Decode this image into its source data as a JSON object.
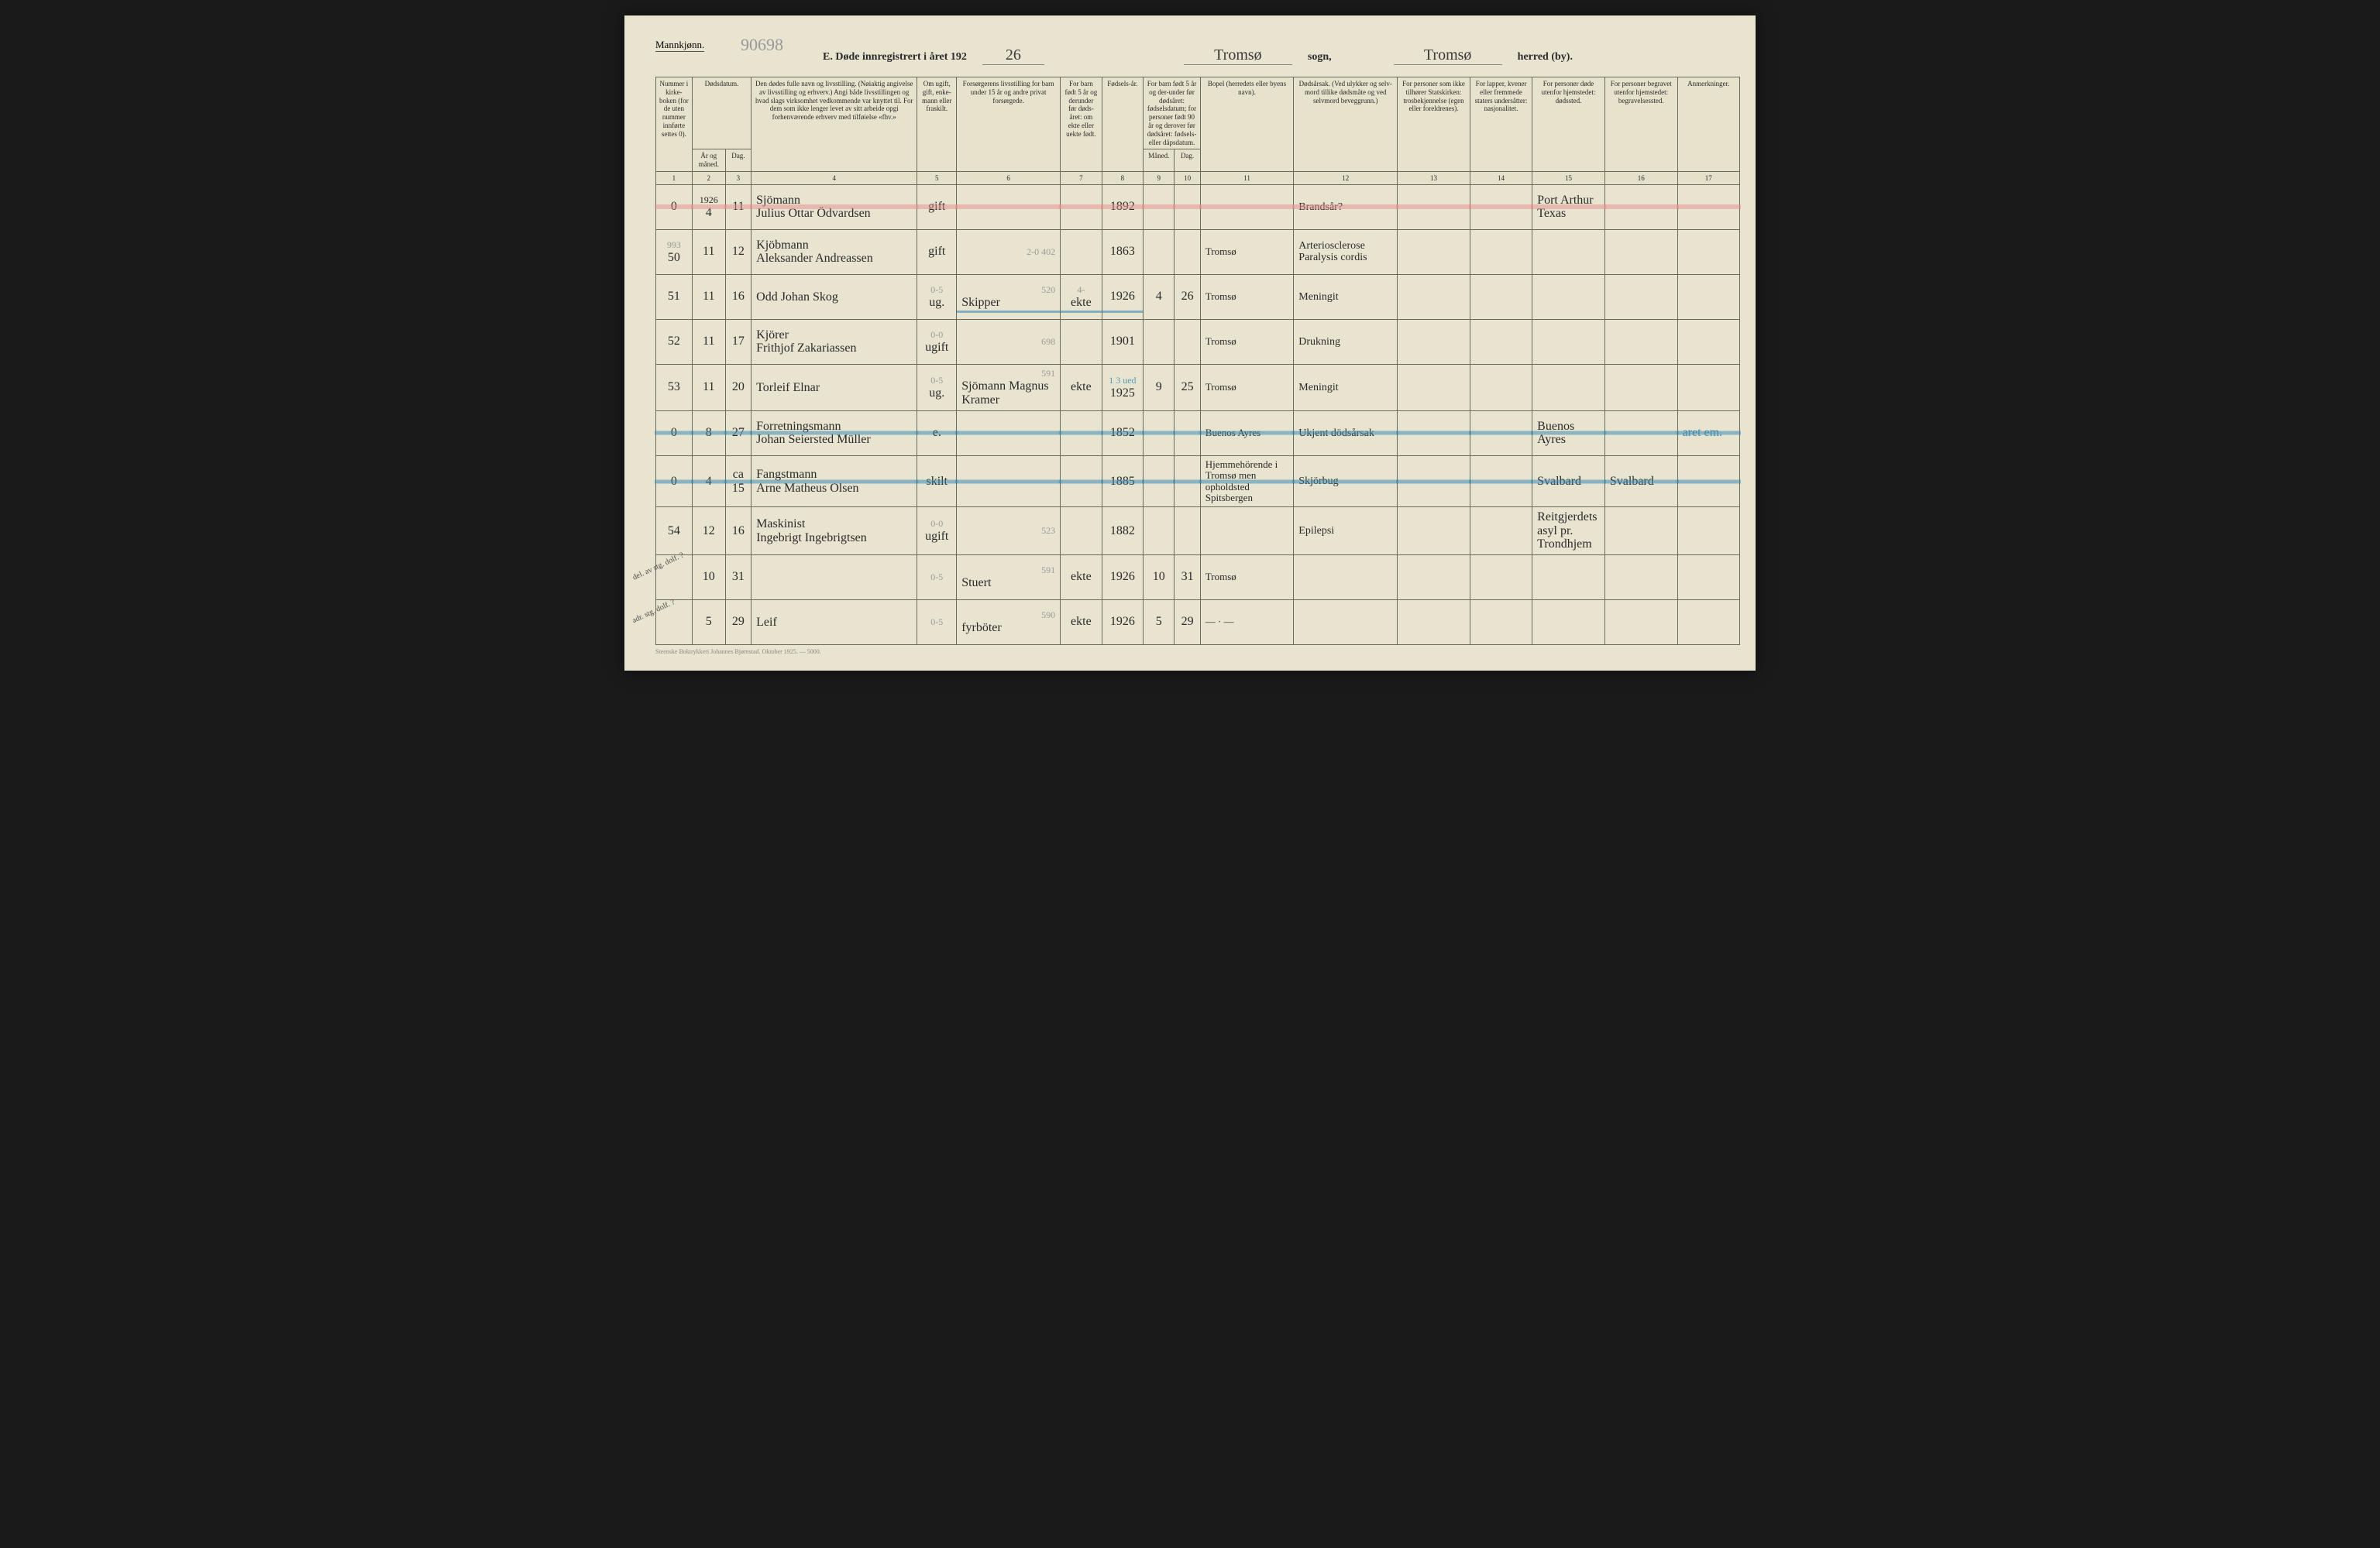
{
  "colors": {
    "paper": "#e8e4d0",
    "ink": "#2a2a2a",
    "pencil": "#9a9a9a",
    "rule": "#6a6a5a",
    "pink_highlight": "rgba(230,140,140,0.5)",
    "blue_highlight": "rgba(60,140,180,0.55)"
  },
  "header": {
    "gender": "Mannkjønn.",
    "pencil_top": "90698",
    "title_prefix": "E.  Døde innregistrert i året 192",
    "year_suffix": "26",
    "sogn_label": "sogn,",
    "sogn_value": "Tromsø",
    "herred_label": "herred (by).",
    "herred_value": "Tromsø"
  },
  "columns": {
    "c1": "Nummer i kirke-boken (for de uten nummer innførte settes 0).",
    "c2_3": "Dødsdatum.",
    "c2": "År og måned.",
    "c3": "Dag.",
    "c4": "Den dødes fulle navn og livsstilling. (Nøiaktig angivelse av livsstilling og erhverv.) Angi både livsstillingen og hvad slags virksomhet vedkommende var knyttet til. For dem som ikke lenger levet av sitt arbeide opgi forhenværende erhverv med tilføielse «fhv.»",
    "c5": "Om ugift, gift, enke-mann eller fraskilt.",
    "c6": "Forsørgerens livsstilling for barn under 15 år og andre privat forsørgede.",
    "c7": "For barn født 5 år og derunder før døds-året: om ekte eller uekte født.",
    "c8": "Fødsels-år.",
    "c9_10": "For barn født 5 år og der-under før dødsåret: fødselsdatum; for personer født 90 år og derover før dødsåret: fødsels- eller dåpsdatum.",
    "c9": "Måned.",
    "c10": "Dag.",
    "c11": "Bopel (herredets eller byens navn).",
    "c12": "Dødsårsak. (Ved ulykker og selv-mord tillike dødsmåte og ved selvmord beveggrunn.)",
    "c13": "For personer som ikke tilhører Statskirken: trosbekjennelse (egen eller foreldrenes).",
    "c14": "For lapper, kvener eller fremmede staters undersåtter: nasjonalitet.",
    "c15": "For personer døde utenfor hjemstedet: dødssted.",
    "c16": "For personer begravet utenfor hjemstedet: begravelsessted.",
    "c17": "Anmerkninger."
  },
  "colnums": [
    "1",
    "2",
    "3",
    "4",
    "5",
    "6",
    "7",
    "8",
    "9",
    "10",
    "11",
    "12",
    "13",
    "14",
    "15",
    "16",
    "17"
  ],
  "rows": [
    {
      "num": "0",
      "year_note": "1926",
      "month": "4",
      "day": "11",
      "name_top": "Sjömann",
      "name_bot": "Julius Ottar Ödvardsen",
      "status": "gift",
      "provider": "",
      "ekte": "",
      "birth": "1892",
      "bm": "",
      "bd": "",
      "residence": "",
      "cause": "Brandsår?",
      "faith": "",
      "nat": "",
      "deathplace_top": "Port Arthur",
      "deathplace_bot": "Texas",
      "burial": "",
      "remarks": "",
      "highlight": "pink"
    },
    {
      "num": "50",
      "pencil_num": "993",
      "month": "11",
      "day": "12",
      "name_top": "Kjöbmann",
      "name_bot": "Aleksander Andreassen",
      "status": "gift",
      "provider": "",
      "pencil_provider": "2-0   402",
      "ekte": "",
      "birth": "1863",
      "bm": "",
      "bd": "",
      "residence": "Tromsø",
      "cause": "Arteriosclerose Paralysis cordis",
      "faith": "",
      "nat": "",
      "deathplace_top": "",
      "deathplace_bot": "",
      "burial": "",
      "remarks": ""
    },
    {
      "num": "51",
      "month": "11",
      "day": "16",
      "name_top": "",
      "name_bot": "Odd Johan Skog",
      "status": "ug.",
      "pencil_status": "0-5",
      "provider": "Skipper",
      "pencil_provider": "520",
      "ekte": "ekte",
      "ekte_pencil": "4-",
      "birth": "1926",
      "bm": "4",
      "bd": "26",
      "residence": "Tromsø",
      "cause": "Meningit",
      "faith": "",
      "nat": "",
      "deathplace_top": "",
      "deathplace_bot": "",
      "burial": "",
      "remarks": "",
      "blue_under": true
    },
    {
      "num": "52",
      "month": "11",
      "day": "17",
      "name_top": "Kjörer",
      "name_bot": "Frithjof Zakariassen",
      "status": "ugift",
      "pencil_status": "0-0",
      "provider": "",
      "pencil_provider": "698",
      "ekte": "",
      "birth": "1901",
      "bm": "",
      "bd": "",
      "residence": "Tromsø",
      "cause": "Drukning",
      "faith": "",
      "nat": "",
      "deathplace_top": "",
      "deathplace_bot": "",
      "burial": "",
      "remarks": ""
    },
    {
      "num": "53",
      "month": "11",
      "day": "20",
      "name_top": "",
      "name_bot": "Torleif Elnar",
      "status": "ug.",
      "pencil_status": "0-5",
      "provider": "Sjömann Magnus Kramer",
      "pencil_provider": "591",
      "ekte": "ekte",
      "birth": "1925",
      "bm": "9",
      "bd": "25",
      "residence": "Tromsø",
      "cause": "Meningit",
      "faith": "",
      "nat": "",
      "deathplace_top": "",
      "deathplace_bot": "",
      "burial": "",
      "remarks": "",
      "pencil_birth": "1 3 ued"
    },
    {
      "num": "0",
      "month": "8",
      "day": "27",
      "name_top": "Forretningsmann",
      "name_bot": "Johan Seiersted Müller",
      "status": "e.",
      "provider": "",
      "ekte": "",
      "birth": "1852",
      "bm": "",
      "bd": "",
      "residence": "Buenos Ayres",
      "cause": "Ukjent dödsårsak",
      "faith": "",
      "nat": "",
      "deathplace_top": "Buenos",
      "deathplace_bot": "Ayres",
      "burial": "",
      "remarks": "aret em.",
      "highlight": "blue"
    },
    {
      "num": "0",
      "month": "4",
      "day": "ca 15",
      "name_top": "Fangstmann",
      "name_bot": "Arne Matheus Olsen",
      "status": "skilt",
      "provider": "",
      "ekte": "",
      "birth": "1885",
      "bm": "",
      "bd": "",
      "residence": "Hjemmehörende i Tromsø men opholdsted Spitsbergen",
      "cause": "Skjörbug",
      "faith": "",
      "nat": "",
      "deathplace_top": "Svalbard",
      "deathplace_bot": "",
      "burial": "Svalbard",
      "remarks": "",
      "highlight": "blue"
    },
    {
      "num": "54",
      "month": "12",
      "day": "16",
      "name_top": "Maskinist",
      "name_bot": "Ingebrigt Ingebrigtsen",
      "status": "ugift",
      "pencil_status": "0-0",
      "provider": "",
      "pencil_provider": "523",
      "ekte": "",
      "birth": "1882",
      "bm": "",
      "bd": "",
      "residence": "",
      "cause": "Epilepsi",
      "faith": "",
      "nat": "",
      "deathplace_top": "Reitgjerdets",
      "deathplace_bot": "asyl pr. Trondhjem",
      "burial": "",
      "remarks": ""
    },
    {
      "num": "",
      "month": "10",
      "day": "31",
      "name_top": "",
      "name_bot": "",
      "status": "",
      "pencil_status": "0-5",
      "provider": "Stuert",
      "pencil_provider": "591",
      "ekte": "ekte",
      "birth": "1926",
      "bm": "10",
      "bd": "31",
      "residence": "Tromsø",
      "cause": "",
      "faith": "",
      "nat": "",
      "deathplace_top": "",
      "deathplace_bot": "",
      "burial": "",
      "remarks": "",
      "margin": "del. av stg. dolf. ?"
    },
    {
      "num": "",
      "month": "5",
      "day": "29",
      "name_top": "",
      "name_bot": "Leif",
      "status": "",
      "pencil_status": "0-5",
      "provider": "fyrböter",
      "pencil_provider": "590",
      "ekte": "ekte",
      "birth": "1926",
      "bm": "5",
      "bd": "29",
      "residence": "— · —",
      "cause": "",
      "faith": "",
      "nat": "",
      "deathplace_top": "",
      "deathplace_bot": "",
      "burial": "",
      "remarks": "",
      "margin": "adr. stg. dolf. ?"
    }
  ],
  "footer": "Steenske Boktrykkeri Johannes Bjørnstad.  Oktober 1925. — 5000.",
  "col_widths_pct": [
    3.5,
    3.2,
    2.5,
    16,
    3.8,
    10,
    4,
    4,
    3,
    2.5,
    9,
    10,
    7,
    6,
    7,
    7,
    6
  ]
}
